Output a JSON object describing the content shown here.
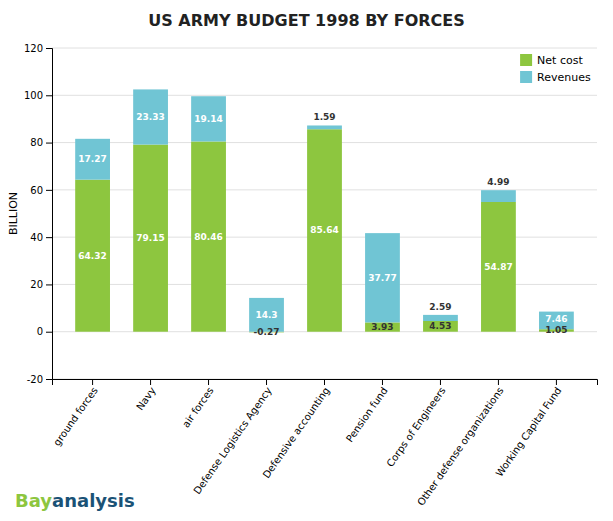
{
  "chart_data": {
    "type": "bar",
    "title": "US ARMY BUDGET 1998 BY FORCES",
    "categories": [
      "ground forces",
      "Navy",
      "air forces",
      "Defense Logistics Agency",
      "Defensive accounting",
      "Pension fund",
      "Corps of Engineers",
      "Other defense organizations",
      "Working Capital Fund"
    ],
    "series": [
      {
        "name": "Net cost",
        "color": "#8DC63F",
        "values": [
          64.32,
          79.15,
          80.46,
          -0.27,
          85.64,
          3.93,
          4.53,
          54.87,
          1.05
        ]
      },
      {
        "name": "Revenues",
        "color": "#70C5D4",
        "values": [
          17.27,
          23.33,
          19.14,
          14.3,
          1.59,
          37.77,
          2.59,
          4.99,
          7.46
        ]
      }
    ],
    "ylabel": "BILLION",
    "ylim": [
      -20,
      120
    ],
    "yticks": [
      -20,
      0,
      20,
      40,
      60,
      80,
      100,
      120
    ],
    "stacked": true,
    "grid": true,
    "legend": "upper right",
    "data_labels": true,
    "annotations": [
      "Bay",
      "analysis"
    ]
  }
}
